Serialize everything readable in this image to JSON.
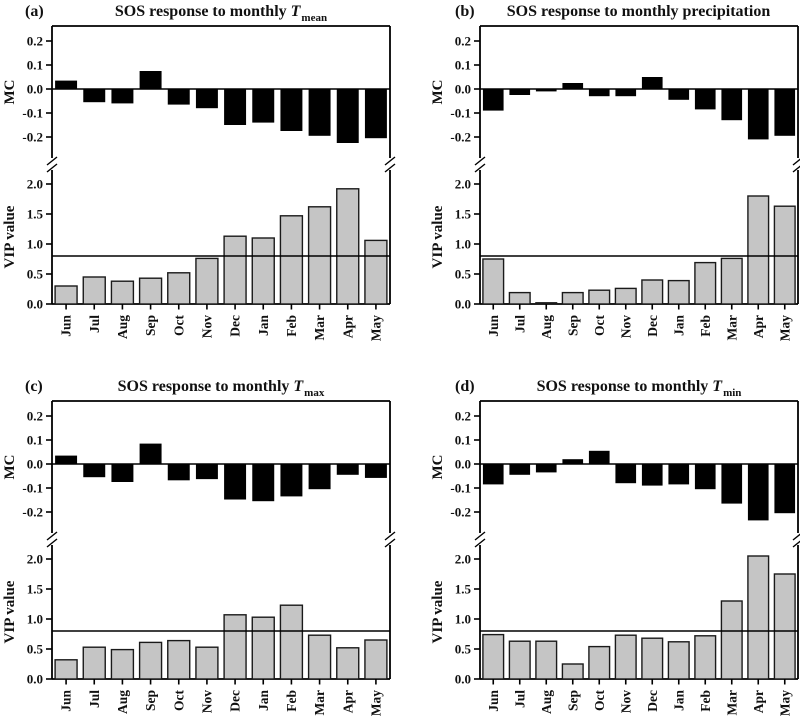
{
  "figure": {
    "months": [
      "Jun",
      "Jul",
      "Aug",
      "Sep",
      "Oct",
      "Nov",
      "Dec",
      "Jan",
      "Feb",
      "Mar",
      "Apr",
      "May"
    ],
    "mc_axis": {
      "label": "MC",
      "ticks": [
        0.2,
        0.1,
        0.0,
        -0.1,
        -0.2
      ]
    },
    "vip_axis": {
      "label": "VIP value",
      "ticks": [
        2.0,
        1.5,
        1.0,
        0.5,
        0.0
      ]
    },
    "vip_threshold": 0.8,
    "colors": {
      "mc_bar": "#000000",
      "vip_bar_fill": "#c5c5c5",
      "vip_bar_stroke": "#1a1a1a",
      "frame": "#000000",
      "text": "#111111"
    }
  },
  "chart_data": [
    {
      "type": "bar",
      "panel_label": "(a)",
      "title_prefix": "SOS response to monthly ",
      "title_symbol": "T",
      "title_subscript": "mean",
      "categories": [
        "Jun",
        "Jul",
        "Aug",
        "Sep",
        "Oct",
        "Nov",
        "Dec",
        "Jan",
        "Feb",
        "Mar",
        "Apr",
        "May"
      ],
      "series": [
        {
          "name": "MC",
          "values": [
            0.035,
            -0.055,
            -0.06,
            0.075,
            -0.065,
            -0.08,
            -0.15,
            -0.14,
            -0.175,
            -0.195,
            -0.225,
            -0.205
          ]
        },
        {
          "name": "VIP value",
          "values": [
            0.3,
            0.45,
            0.38,
            0.43,
            0.52,
            0.76,
            1.13,
            1.1,
            1.47,
            1.62,
            1.92,
            1.06
          ]
        }
      ],
      "mc_ylim": [
        -0.27,
        0.26
      ],
      "vip_ylim": [
        0,
        2.4
      ],
      "threshold": 0.8
    },
    {
      "type": "bar",
      "panel_label": "(b)",
      "title_prefix": "SOS response to monthly precipitation",
      "title_symbol": "",
      "title_subscript": "",
      "categories": [
        "Jun",
        "Jul",
        "Aug",
        "Sep",
        "Oct",
        "Nov",
        "Dec",
        "Jan",
        "Feb",
        "Mar",
        "Apr",
        "May"
      ],
      "series": [
        {
          "name": "MC",
          "values": [
            -0.09,
            -0.025,
            -0.01,
            0.025,
            -0.03,
            -0.03,
            0.05,
            -0.045,
            -0.085,
            -0.13,
            -0.21,
            -0.195
          ]
        },
        {
          "name": "VIP value",
          "values": [
            0.75,
            0.19,
            0.02,
            0.19,
            0.23,
            0.26,
            0.4,
            0.39,
            0.69,
            0.76,
            1.8,
            1.63
          ]
        }
      ],
      "mc_ylim": [
        -0.27,
        0.26
      ],
      "vip_ylim": [
        0,
        2.4
      ],
      "threshold": 0.8
    },
    {
      "type": "bar",
      "panel_label": "(c)",
      "title_prefix": "SOS response to monthly ",
      "title_symbol": "T",
      "title_subscript": "max",
      "categories": [
        "Jun",
        "Jul",
        "Aug",
        "Sep",
        "Oct",
        "Nov",
        "Dec",
        "Jan",
        "Feb",
        "Mar",
        "Apr",
        "May"
      ],
      "series": [
        {
          "name": "MC",
          "values": [
            0.035,
            -0.055,
            -0.075,
            0.085,
            -0.068,
            -0.063,
            -0.148,
            -0.155,
            -0.135,
            -0.105,
            -0.045,
            -0.058
          ]
        },
        {
          "name": "VIP value",
          "values": [
            0.32,
            0.53,
            0.49,
            0.61,
            0.64,
            0.53,
            1.07,
            1.03,
            1.23,
            0.73,
            0.52,
            0.65
          ]
        }
      ],
      "mc_ylim": [
        -0.27,
        0.26
      ],
      "vip_ylim": [
        0,
        2.4
      ],
      "threshold": 0.8
    },
    {
      "type": "bar",
      "panel_label": "(d)",
      "title_prefix": "SOS response to monthly ",
      "title_symbol": "T",
      "title_subscript": "min",
      "categories": [
        "Jun",
        "Jul",
        "Aug",
        "Sep",
        "Oct",
        "Nov",
        "Dec",
        "Jan",
        "Feb",
        "Mar",
        "Apr",
        "May"
      ],
      "series": [
        {
          "name": "MC",
          "values": [
            -0.085,
            -0.045,
            -0.035,
            0.02,
            0.055,
            -0.08,
            -0.09,
            -0.085,
            -0.105,
            -0.165,
            -0.235,
            -0.205
          ]
        },
        {
          "name": "VIP value",
          "values": [
            0.74,
            0.63,
            0.63,
            0.25,
            0.54,
            0.73,
            0.68,
            0.62,
            0.72,
            1.3,
            2.05,
            1.75
          ]
        }
      ],
      "mc_ylim": [
        -0.27,
        0.26
      ],
      "vip_ylim": [
        0,
        2.4
      ],
      "threshold": 0.8
    }
  ]
}
